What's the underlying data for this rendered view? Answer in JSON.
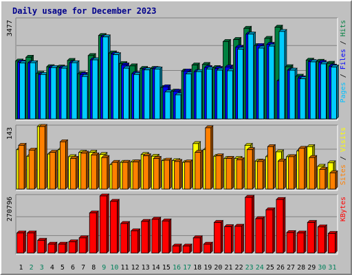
{
  "chart_data": {
    "type": "bar",
    "title": "Daily usage for December 2023",
    "categories": [
      "1",
      "2",
      "3",
      "4",
      "5",
      "6",
      "7",
      "8",
      "9",
      "10",
      "11",
      "12",
      "13",
      "14",
      "15",
      "16",
      "17",
      "18",
      "19",
      "20",
      "21",
      "22",
      "23",
      "24",
      "25",
      "26",
      "27",
      "28",
      "29",
      "30",
      "31"
    ],
    "weekend_days": [
      2,
      3,
      9,
      10,
      16,
      17,
      23,
      24,
      30,
      31
    ],
    "panels": [
      {
        "name": "top",
        "ymax_label": "3477",
        "ymax": 3477,
        "legend": [
          {
            "text": "Pages",
            "color": "#00c0ff"
          },
          {
            "text": "Files",
            "color": "#0000ff"
          },
          {
            "text": "Hits",
            "color": "#008040"
          }
        ],
        "series": [
          {
            "name": "Hits",
            "color": "#008040",
            "values": [
              2020,
              2150,
              1590,
              1820,
              1810,
              2040,
              1580,
              2210,
              2910,
              2300,
              1930,
              1850,
              1760,
              1760,
              1100,
              970,
              1670,
              1880,
              1900,
              1790,
              2700,
              2770,
              3160,
              2560,
              2810,
              3200,
              1820,
              1490,
              2050,
              2010,
              1940
            ]
          },
          {
            "name": "Files",
            "color": "#0000ff",
            "values": [
              1980,
              1960,
              1550,
              1790,
              1780,
              1960,
              1550,
              2060,
              2860,
              2260,
              1880,
              1580,
              1720,
              1750,
              1120,
              960,
              1670,
              1650,
              1790,
              1760,
              1810,
              2500,
              2960,
              2560,
              2600,
              1330,
              1700,
              1430,
              2000,
              1970,
              1840
            ]
          },
          {
            "name": "Pages",
            "color": "#00ccff",
            "values": [
              1950,
              1960,
              1550,
              1790,
              1770,
              1960,
              1480,
              2060,
              2860,
              2240,
              1770,
              1550,
              1710,
              1740,
              940,
              840,
              1570,
              1650,
              1740,
              1700,
              1680,
              2430,
              2960,
              2470,
              2540,
              3050,
              1700,
              1400,
              1990,
              1920,
              1810
            ]
          }
        ]
      },
      {
        "name": "middle",
        "ymax_label": "143",
        "ymax": 143,
        "legend": [
          {
            "text": "Sites",
            "color": "#ff8000"
          },
          {
            "text": "Visits",
            "color": "#ffff00"
          }
        ],
        "series": [
          {
            "name": "Visits",
            "color": "#ffff00",
            "values": [
              90,
              75,
              143,
              80,
              90,
              74,
              84,
              84,
              79,
              56,
              61,
              62,
              79,
              75,
              65,
              65,
              61,
              104,
              90,
              75,
              70,
              70,
              100,
              64,
              74,
              85,
              74,
              87,
              97,
              52,
              60
            ]
          },
          {
            "name": "Sites",
            "color": "#ff8000",
            "values": [
              100,
              89,
              143,
              84,
              108,
              70,
              82,
              78,
              72,
              61,
              61,
              62,
              76,
              70,
              66,
              63,
              62,
              84,
              140,
              76,
              70,
              67,
              90,
              63,
              97,
              64,
              74,
              93,
              72,
              45,
              37
            ]
          }
        ]
      },
      {
        "name": "bottom",
        "ymax_label": "270796",
        "ymax": 270796,
        "legend": [
          {
            "text": "KBytes",
            "color": "#ff0000"
          }
        ],
        "series": [
          {
            "name": "KBytes",
            "color": "#ff0000",
            "values": [
              95000,
              95000,
              60000,
              42000,
              42000,
              53000,
              72000,
              190000,
              270796,
              245000,
              140000,
              105000,
              150000,
              160000,
              152000,
              33000,
              33000,
              72000,
              42000,
              145000,
              125000,
              127000,
              264000,
              163000,
              205000,
              254000,
              97000,
              95000,
              145000,
              124000,
              93000
            ]
          }
        ]
      }
    ]
  }
}
